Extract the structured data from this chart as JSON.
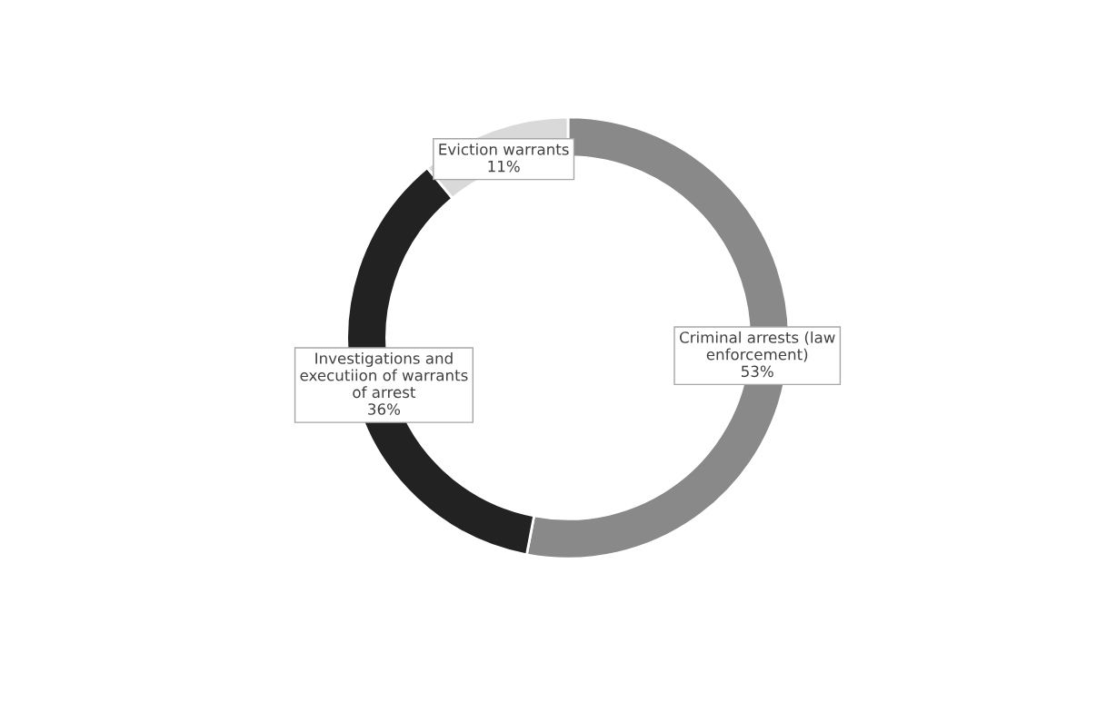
{
  "chart_data": {
    "type": "donut",
    "categories": [
      "Criminal arrests (law\nenforcement)",
      "Investigations and\nexecutiion of warrants\nof arrest",
      "Eviction warrants"
    ],
    "values": [
      53,
      36,
      11
    ],
    "colors": [
      "#898989",
      "#222222",
      "#d9d9d9"
    ],
    "value_labels": [
      "53%",
      "36%",
      "11%"
    ],
    "legend": false
  }
}
